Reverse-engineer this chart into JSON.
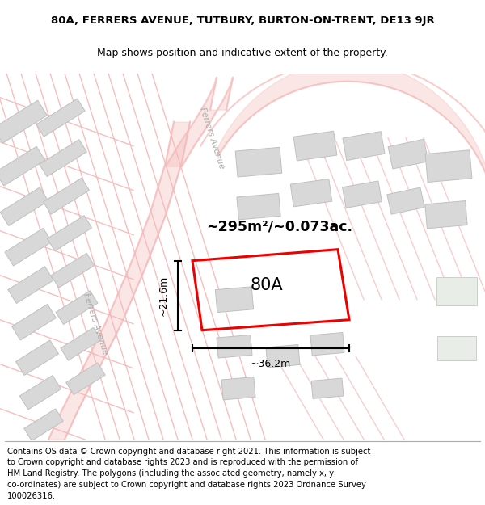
{
  "title_line1": "80A, FERRERS AVENUE, TUTBURY, BURTON-ON-TRENT, DE13 9JR",
  "title_line2": "Map shows position and indicative extent of the property.",
  "footer_lines": [
    "Contains OS data © Crown copyright and database right 2021. This information is subject",
    "to Crown copyright and database rights 2023 and is reproduced with the permission of",
    "HM Land Registry. The polygons (including the associated geometry, namely x, y",
    "co-ordinates) are subject to Crown copyright and database rights 2023 Ordnance Survey",
    "100026316."
  ],
  "bg_color": "#ffffff",
  "map_bg": "#f8f6f4",
  "road_color": "#f5b8b8",
  "building_color": "#d8d8d8",
  "building_edge": "#c0c0c0",
  "highlight_color": "#ee0000",
  "area_label": "~295m²/~0.073ac.",
  "plot_label": "80A",
  "dim_width": "~36.2m",
  "dim_height": "~21.6m",
  "road_label1": "Ferrers Avenue",
  "road_label2": "Ferrers Avenue",
  "title_fontsize": 9.5,
  "footer_fontsize": 7.2
}
